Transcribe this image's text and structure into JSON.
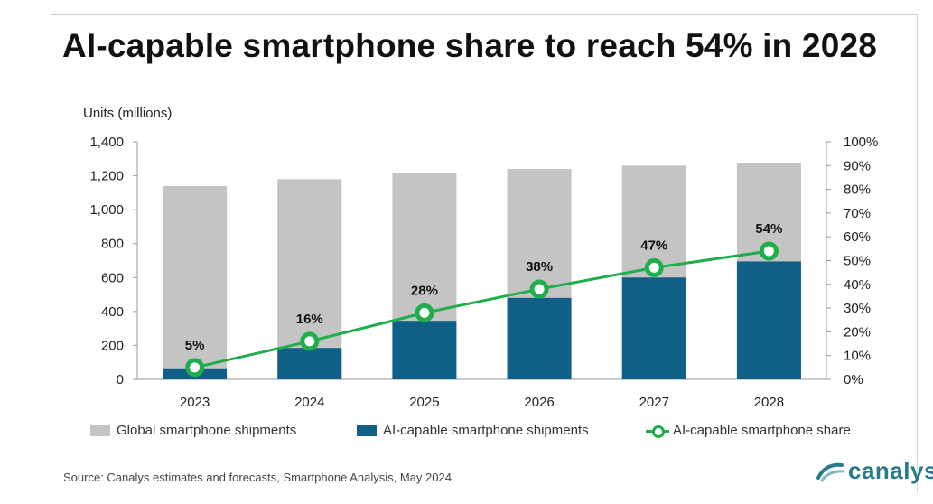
{
  "title": "AI-capable smartphone share to reach 54% in 2028",
  "left_axis_title": "Units (millions)",
  "source": "Source: Canalys estimates and forecasts, Smartphone Analysis, May 2024",
  "brand": {
    "name": "canalys"
  },
  "colors": {
    "global": "#c4c4c4",
    "ai": "#0f5f86",
    "share": "#1fae4b"
  },
  "legend": [
    {
      "label": "Global smartphone shipments"
    },
    {
      "label": "AI-capable smartphone shipments"
    },
    {
      "label": "AI-capable smartphone share"
    }
  ],
  "chart_data": {
    "type": "bar",
    "categories": [
      "2023",
      "2024",
      "2025",
      "2026",
      "2027",
      "2028"
    ],
    "series": [
      {
        "name": "Global smartphone shipments",
        "type": "bar",
        "axis": "left",
        "values": [
          1140,
          1180,
          1215,
          1240,
          1260,
          1275
        ]
      },
      {
        "name": "AI-capable smartphone shipments",
        "type": "bar",
        "axis": "left",
        "values": [
          65,
          185,
          345,
          480,
          600,
          695
        ]
      },
      {
        "name": "AI-capable smartphone share",
        "type": "line",
        "axis": "right",
        "values": [
          5,
          16,
          28,
          38,
          47,
          54
        ],
        "labels": [
          "5%",
          "16%",
          "28%",
          "38%",
          "47%",
          "54%"
        ]
      }
    ],
    "left_axis": {
      "min": 0,
      "max": 1400,
      "ticks": [
        "0",
        "200",
        "400",
        "600",
        "800",
        "1,000",
        "1,200",
        "1,400"
      ],
      "tick_values": [
        0,
        200,
        400,
        600,
        800,
        1000,
        1200,
        1400
      ]
    },
    "right_axis": {
      "min": 0,
      "max": 100,
      "ticks": [
        "0%",
        "10%",
        "20%",
        "30%",
        "40%",
        "50%",
        "60%",
        "70%",
        "80%",
        "90%",
        "100%"
      ],
      "tick_values": [
        0,
        10,
        20,
        30,
        40,
        50,
        60,
        70,
        80,
        90,
        100
      ]
    },
    "grid": false,
    "legend_position": "bottom"
  }
}
